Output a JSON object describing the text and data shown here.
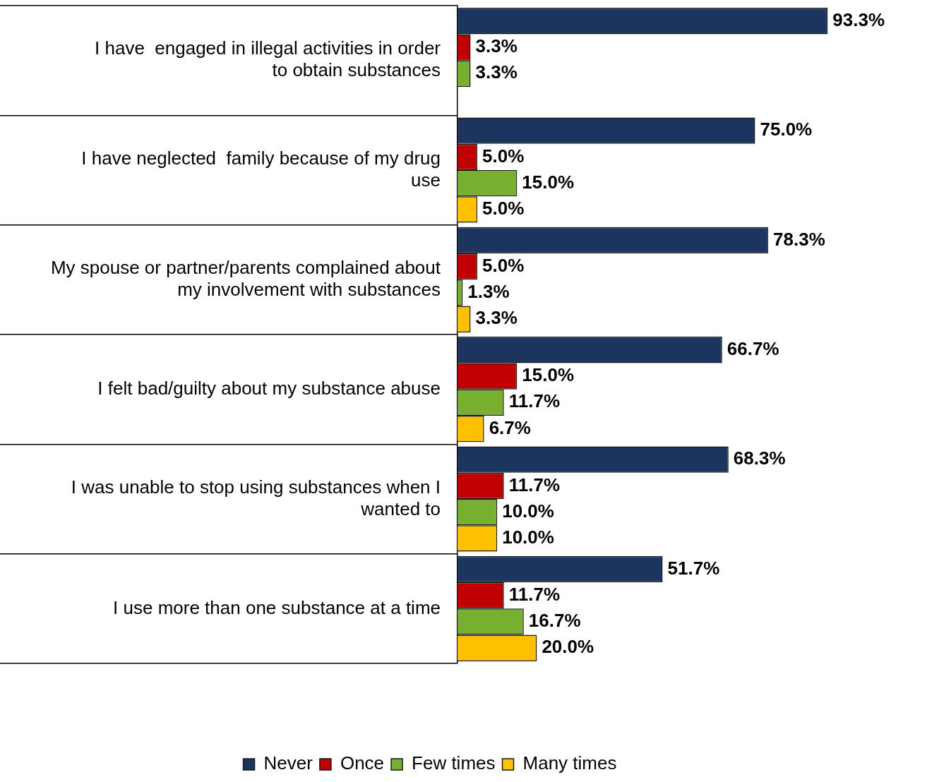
{
  "chart_data": {
    "type": "bar",
    "orientation": "horizontal",
    "categories": [
      "I have  engaged in illegal activities in order to obtain substances",
      "I have neglected  family because of my drug use",
      "My spouse or partner/parents complained about my involvement with substances",
      "I felt bad/guilty about my substance abuse",
      "I was unable to stop using substances when I wanted to",
      "I use more than one substance at a time"
    ],
    "series": [
      {
        "name": "Never",
        "color": "#1b355e",
        "values": [
          93.3,
          75.0,
          78.3,
          66.7,
          68.3,
          51.7
        ],
        "value_labels": [
          "93.3%",
          "75.0%",
          "78.3%",
          "66.7%",
          "68.3%",
          "51.7%"
        ]
      },
      {
        "name": "Once",
        "color": "#c00000",
        "values": [
          3.3,
          5.0,
          5.0,
          15.0,
          11.7,
          11.7
        ],
        "value_labels": [
          "3.3%",
          "5.0%",
          "5.0%",
          "15.0%",
          "11.7%",
          "11.7%"
        ]
      },
      {
        "name": "Few times",
        "color": "#77b031",
        "values": [
          3.3,
          15.0,
          1.3,
          11.7,
          10.0,
          16.7
        ],
        "value_labels": [
          "3.3%",
          "15.0%",
          "1.3%",
          "11.7%",
          "10.0%",
          "16.7%"
        ]
      },
      {
        "name": "Many times",
        "color": "#ffc000",
        "values": [
          null,
          5.0,
          3.3,
          6.7,
          10.0,
          20.0
        ],
        "value_labels": [
          null,
          "5.0%",
          "3.3%",
          "6.7%",
          "10.0%",
          "20.0%"
        ]
      }
    ],
    "legend": "bottom",
    "grid": false
  }
}
